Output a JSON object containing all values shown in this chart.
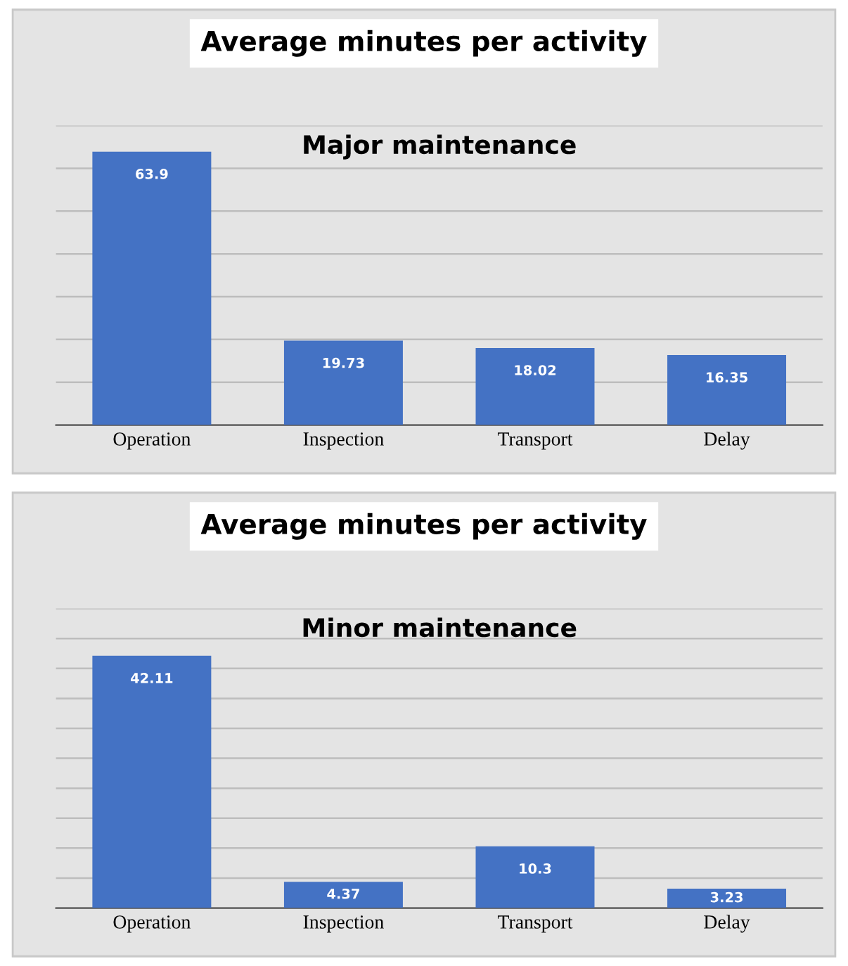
{
  "chart_data": [
    {
      "type": "bar",
      "title": "Average minutes per activity",
      "subtitle": "Major maintenance",
      "categories": [
        "Operation",
        "Inspection",
        "Transport",
        "Delay"
      ],
      "values": [
        63.9,
        19.73,
        18.02,
        16.35
      ],
      "color": "#4472c4",
      "data_labels": true,
      "ylim": [
        0,
        70
      ],
      "yticks": [
        {
          "value": 0,
          "label": null
        },
        {
          "value": 10,
          "label": null
        },
        {
          "value": 20,
          "label": null
        },
        {
          "value": 30,
          "label": null
        },
        {
          "value": 40,
          "label": null
        },
        {
          "value": 50,
          "label": null
        },
        {
          "value": 60,
          "label": null
        },
        {
          "value": 70,
          "label": null
        }
      ],
      "grid": "y",
      "tick_labels": "x"
    },
    {
      "type": "bar",
      "title": "Average minutes per activity",
      "subtitle": "Minor maintenance",
      "categories": [
        "Operation",
        "Inspection",
        "Transport",
        "Delay"
      ],
      "values": [
        42.11,
        4.37,
        10.3,
        3.23
      ],
      "color": "#4472c4",
      "data_labels": true,
      "ylim": [
        0,
        50
      ],
      "yticks": [
        {
          "value": 0,
          "label": null
        },
        {
          "value": 5,
          "label": null
        },
        {
          "value": 10,
          "label": null
        },
        {
          "value": 15,
          "label": null
        },
        {
          "value": 20,
          "label": null
        },
        {
          "value": 25,
          "label": null
        },
        {
          "value": 30,
          "label": null
        },
        {
          "value": 35,
          "label": null
        },
        {
          "value": 40,
          "label": null
        },
        {
          "value": 45,
          "label": null
        },
        {
          "value": 50,
          "label": null
        }
      ],
      "grid": "y",
      "tick_labels": "x"
    }
  ]
}
